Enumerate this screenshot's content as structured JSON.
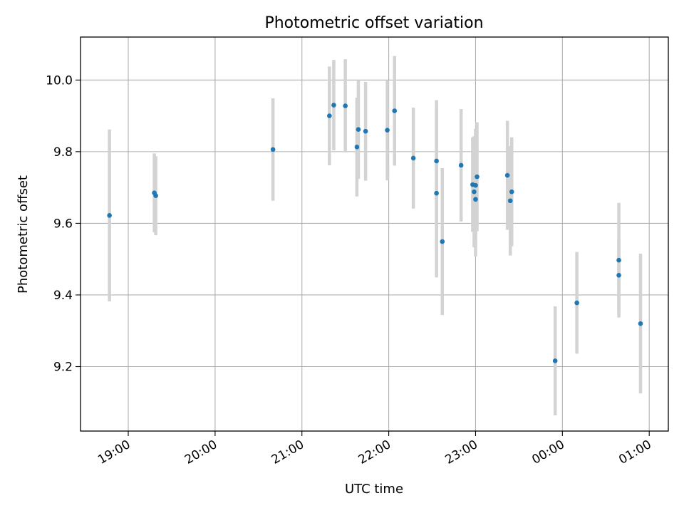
{
  "chart_data": {
    "type": "scatter",
    "title": "Photometric offset variation",
    "xlabel": "UTC time",
    "ylabel": "Photometric offset",
    "x_ticks": [
      "19:00",
      "20:00",
      "21:00",
      "22:00",
      "23:00",
      "00:00",
      "01:00"
    ],
    "x_tick_hours": [
      19,
      20,
      21,
      22,
      23,
      24,
      25
    ],
    "xlim_hours": [
      18.45,
      25.22
    ],
    "y_ticks": [
      "9.2",
      "9.4",
      "9.6",
      "9.8",
      "10.0"
    ],
    "y_tick_values": [
      9.2,
      9.4,
      9.6,
      9.8,
      10.0
    ],
    "ylim": [
      9.02,
      10.12
    ],
    "grid": true,
    "errorbar_color": "#d3d3d3",
    "marker_color": "#1f77b4",
    "points": [
      {
        "t": "18:47",
        "y": 9.622,
        "err": 0.24
      },
      {
        "t": "19:18",
        "y": 9.685,
        "err": 0.11
      },
      {
        "t": "19:19",
        "y": 9.677,
        "err": 0.11
      },
      {
        "t": "20:40",
        "y": 9.806,
        "err": 0.143
      },
      {
        "t": "21:19",
        "y": 9.9,
        "err": 0.138
      },
      {
        "t": "21:22",
        "y": 9.93,
        "err": 0.126
      },
      {
        "t": "21:30",
        "y": 9.928,
        "err": 0.13
      },
      {
        "t": "21:38",
        "y": 9.813,
        "err": 0.138
      },
      {
        "t": "21:39",
        "y": 9.862,
        "err": 0.138
      },
      {
        "t": "21:44",
        "y": 9.857,
        "err": 0.138
      },
      {
        "t": "21:59",
        "y": 9.86,
        "err": 0.14
      },
      {
        "t": "22:04",
        "y": 9.914,
        "err": 0.153
      },
      {
        "t": "22:17",
        "y": 9.782,
        "err": 0.141
      },
      {
        "t": "22:33",
        "y": 9.774,
        "err": 0.17
      },
      {
        "t": "22:33",
        "y": 9.684,
        "err": 0.235
      },
      {
        "t": "22:37",
        "y": 9.549,
        "err": 0.205
      },
      {
        "t": "22:50",
        "y": 9.762,
        "err": 0.157
      },
      {
        "t": "22:58",
        "y": 9.708,
        "err": 0.132
      },
      {
        "t": "22:59",
        "y": 9.688,
        "err": 0.155
      },
      {
        "t": "23:00",
        "y": 9.706,
        "err": 0.158
      },
      {
        "t": "23:00",
        "y": 9.667,
        "err": 0.16
      },
      {
        "t": "23:01",
        "y": 9.73,
        "err": 0.152
      },
      {
        "t": "23:22",
        "y": 9.734,
        "err": 0.152
      },
      {
        "t": "23:24",
        "y": 9.663,
        "err": 0.153
      },
      {
        "t": "23:25",
        "y": 9.688,
        "err": 0.152
      },
      {
        "t": "23:55",
        "y": 9.216,
        "err": 0.152
      },
      {
        "t": "00:10",
        "y": 9.378,
        "err": 0.142
      },
      {
        "t": "00:39",
        "y": 9.497,
        "err": 0.16
      },
      {
        "t": "00:39",
        "y": 9.455,
        "err": 0.102
      },
      {
        "t": "00:54",
        "y": 9.32,
        "err": 0.195
      }
    ]
  }
}
